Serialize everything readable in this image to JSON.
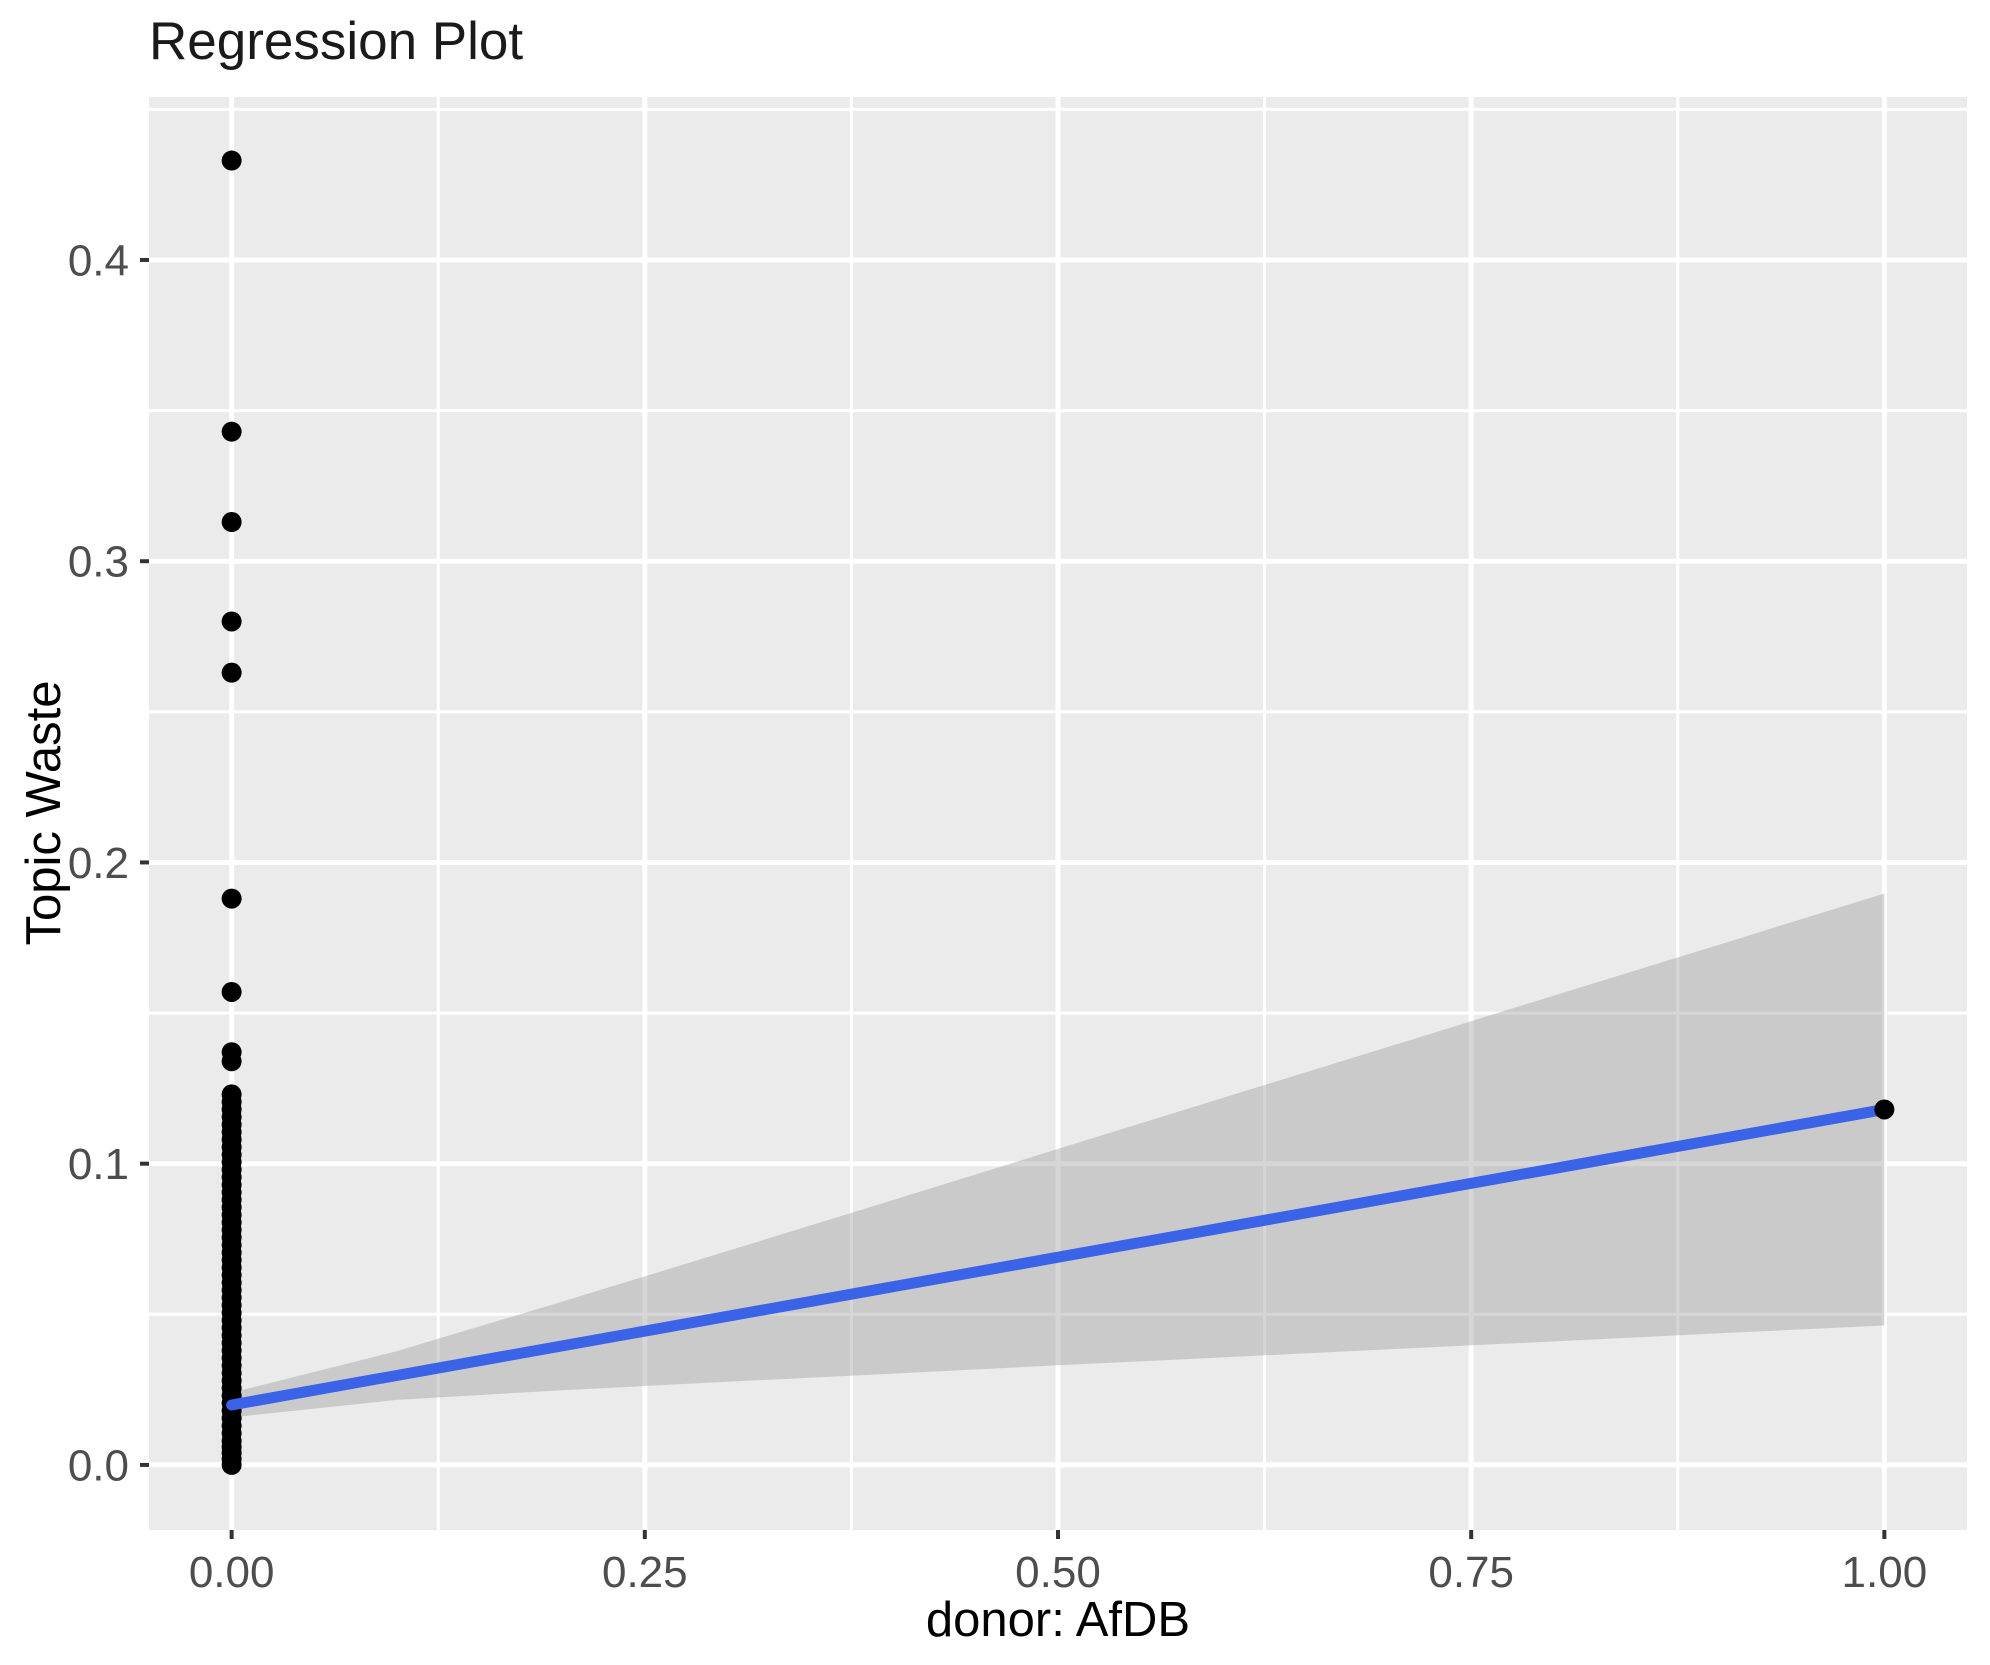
{
  "chart_data": {
    "type": "scatter",
    "title": "Regression Plot",
    "xlabel": "donor: AfDB",
    "ylabel": "Topic Waste",
    "xlim": [
      -0.05,
      1.05
    ],
    "ylim": [
      -0.0216,
      0.4541
    ],
    "grid": true,
    "legend": "none",
    "x_ticks": {
      "values": [
        0,
        0.25,
        0.5,
        0.75,
        1.0
      ],
      "labels": [
        "0.00",
        "0.25",
        "0.50",
        "0.75",
        "1.00"
      ],
      "minor": [
        0.125,
        0.375,
        0.625,
        0.875
      ]
    },
    "y_ticks": {
      "values": [
        0,
        0.1,
        0.2,
        0.3,
        0.4
      ],
      "labels": [
        "0.0",
        "0.1",
        "0.2",
        "0.3",
        "0.4"
      ],
      "minor": [
        0.05,
        0.15,
        0.25,
        0.35,
        0.45
      ]
    },
    "points": [
      [
        0,
        0.433
      ],
      [
        0,
        0.343
      ],
      [
        0,
        0.313
      ],
      [
        0,
        0.28
      ],
      [
        0,
        0.263
      ],
      [
        0,
        0.188
      ],
      [
        0,
        0.157
      ],
      [
        0,
        0.137
      ],
      [
        0,
        0.134
      ],
      [
        0,
        0.123
      ],
      [
        0,
        0.1205
      ],
      [
        0,
        0.118
      ],
      [
        0,
        0.1155
      ],
      [
        0,
        0.113
      ],
      [
        0,
        0.1105
      ],
      [
        0,
        0.108
      ],
      [
        0,
        0.1055
      ],
      [
        0,
        0.103
      ],
      [
        0,
        0.1005
      ],
      [
        0,
        0.098
      ],
      [
        0,
        0.0955
      ],
      [
        0,
        0.093
      ],
      [
        0,
        0.0905
      ],
      [
        0,
        0.088
      ],
      [
        0,
        0.0855
      ],
      [
        0,
        0.083
      ],
      [
        0,
        0.0805
      ],
      [
        0,
        0.078
      ],
      [
        0,
        0.0755
      ],
      [
        0,
        0.073
      ],
      [
        0,
        0.0705
      ],
      [
        0,
        0.068
      ],
      [
        0,
        0.0655
      ],
      [
        0,
        0.063
      ],
      [
        0,
        0.0605
      ],
      [
        0,
        0.058
      ],
      [
        0,
        0.0555
      ],
      [
        0,
        0.053
      ],
      [
        0,
        0.0505
      ],
      [
        0,
        0.048
      ],
      [
        0,
        0.0455
      ],
      [
        0,
        0.043
      ],
      [
        0,
        0.0405
      ],
      [
        0,
        0.038
      ],
      [
        0,
        0.0355
      ],
      [
        0,
        0.033
      ],
      [
        0,
        0.0305
      ],
      [
        0,
        0.028
      ],
      [
        0,
        0.0255
      ],
      [
        0,
        0.023
      ],
      [
        0,
        0.0205
      ],
      [
        0,
        0.018
      ],
      [
        0,
        0.0155
      ],
      [
        0,
        0.013
      ],
      [
        0,
        0.0105
      ],
      [
        0,
        0.008
      ],
      [
        0,
        0.006
      ],
      [
        0,
        0.004
      ],
      [
        0,
        0.002
      ],
      [
        0,
        0.0
      ],
      [
        1,
        0.118
      ]
    ],
    "regression_line": {
      "x1": 0,
      "y1": 0.0199,
      "x2": 1,
      "y2": 0.118
    },
    "confidence_band": [
      [
        0.0,
        0.0158,
        0.024
      ],
      [
        0.1,
        0.0216,
        0.0378
      ],
      [
        0.2,
        0.0248,
        0.0542
      ],
      [
        0.3,
        0.0276,
        0.071
      ],
      [
        0.4,
        0.0303,
        0.0879
      ],
      [
        0.5,
        0.0331,
        0.1049
      ],
      [
        0.6,
        0.0357,
        0.1219
      ],
      [
        0.7,
        0.0384,
        0.1388
      ],
      [
        0.8,
        0.041,
        0.1558
      ],
      [
        0.9,
        0.0437,
        0.1727
      ],
      [
        1.0,
        0.0463,
        0.1897
      ]
    ],
    "colors": {
      "panel_background": "#EBEBEB",
      "grid_line": "#FFFFFF",
      "point": "#000000",
      "regression_line": "#3A63E8",
      "confidence_band": "rgba(153,153,153,0.4)",
      "tick_mark": "#333333",
      "tick_label": "#4d4d4d"
    }
  }
}
